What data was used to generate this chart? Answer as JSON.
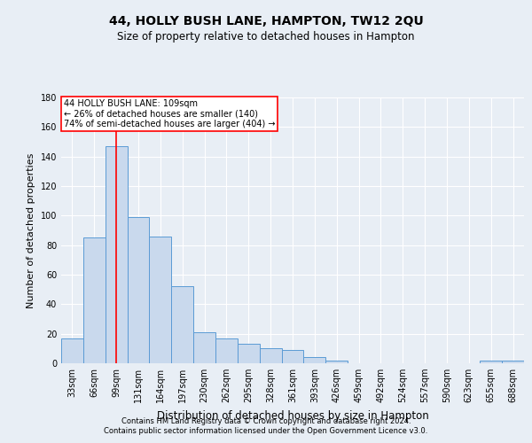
{
  "title": "44, HOLLY BUSH LANE, HAMPTON, TW12 2QU",
  "subtitle": "Size of property relative to detached houses in Hampton",
  "xlabel": "Distribution of detached houses by size in Hampton",
  "ylabel": "Number of detached properties",
  "bin_labels": [
    "33sqm",
    "66sqm",
    "99sqm",
    "131sqm",
    "164sqm",
    "197sqm",
    "230sqm",
    "262sqm",
    "295sqm",
    "328sqm",
    "361sqm",
    "393sqm",
    "426sqm",
    "459sqm",
    "492sqm",
    "524sqm",
    "557sqm",
    "590sqm",
    "623sqm",
    "655sqm",
    "688sqm"
  ],
  "bar_heights": [
    17,
    85,
    147,
    99,
    86,
    52,
    21,
    17,
    13,
    10,
    9,
    4,
    2,
    0,
    0,
    0,
    0,
    0,
    0,
    2,
    2
  ],
  "bar_color": "#c9d9ed",
  "bar_edge_color": "#5b9bd5",
  "red_line_x": 2.0,
  "annotation_line1": "44 HOLLY BUSH LANE: 109sqm",
  "annotation_line2": "← 26% of detached houses are smaller (140)",
  "annotation_line3": "74% of semi-detached houses are larger (404) →",
  "footer_line1": "Contains HM Land Registry data © Crown copyright and database right 2024.",
  "footer_line2": "Contains public sector information licensed under the Open Government Licence v3.0.",
  "ylim": [
    0,
    180
  ],
  "yticks": [
    0,
    20,
    40,
    60,
    80,
    100,
    120,
    140,
    160,
    180
  ],
  "bg_color": "#e8eef5",
  "plot_bg_color": "#e8eef5",
  "grid_color": "#ffffff",
  "title_fontsize": 10,
  "subtitle_fontsize": 8.5,
  "ylabel_fontsize": 8,
  "xlabel_fontsize": 8.5,
  "tick_fontsize": 7,
  "ann_fontsize": 7,
  "footer_fontsize": 6
}
